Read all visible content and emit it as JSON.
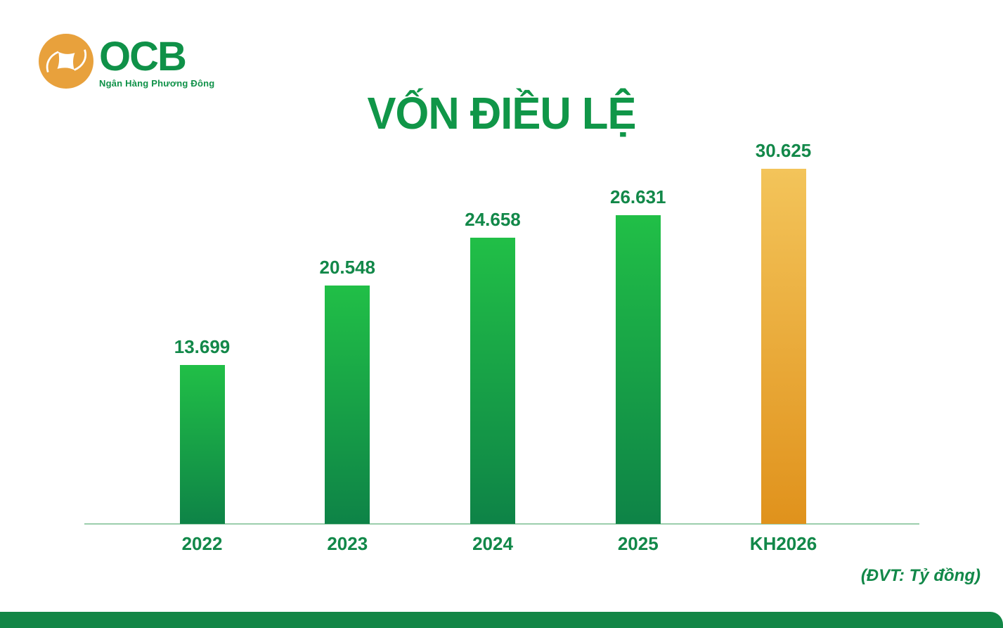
{
  "brand": {
    "logo_text": "OCB",
    "tagline": "Ngân Hàng Phương Đông"
  },
  "title": "VỐN ĐIỀU LỆ",
  "unit_note": "(ĐVT: Tỷ đồng)",
  "chart_data": {
    "type": "bar",
    "title": "VỐN ĐIỀU LỆ",
    "unit": "Tỷ đồng",
    "categories": [
      "2022",
      "2023",
      "2024",
      "2025",
      "KH2026"
    ],
    "values": [
      13699,
      20548,
      24658,
      26631,
      30625
    ],
    "value_labels": [
      "13.699",
      "20.548",
      "24.658",
      "26.631",
      "30.625"
    ],
    "ylim": [
      0,
      30625
    ],
    "grid": false,
    "legend": "none",
    "highlight_index": 4,
    "xlabel": "",
    "ylabel": ""
  },
  "colors": {
    "green_text": "#128849",
    "title_green": "#109648",
    "bar_green_top": "#21BF47",
    "bar_green_bottom": "#0E8347",
    "bar_orange_top": "#F3C45A",
    "bar_orange_bottom": "#E0921C",
    "axis_line": "#9CCEAC",
    "footer_bar": "#128646",
    "logo_orange": "#E8A13C",
    "logo_green": "#0F9148"
  }
}
